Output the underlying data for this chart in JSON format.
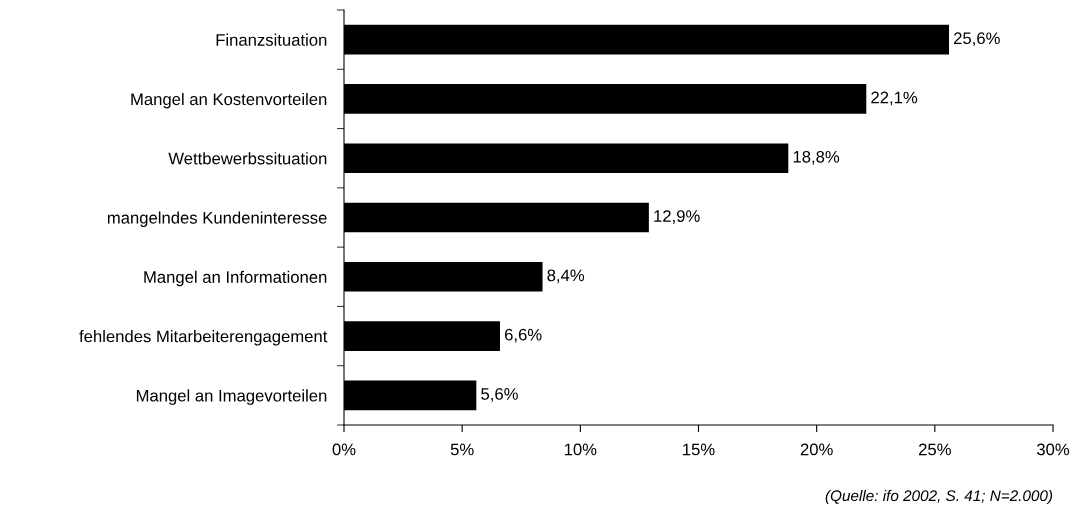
{
  "chart_data": {
    "type": "bar",
    "orientation": "horizontal",
    "categories": [
      "Finanzsituation",
      "Mangel an Kostenvorteilen",
      "Wettbewerbssituation",
      "mangelndes Kundeninteresse",
      "Mangel an Informationen",
      "fehlendes Mitarbeiterengagement",
      "Mangel an Imagevorteilen"
    ],
    "values": [
      25.6,
      22.1,
      18.8,
      12.9,
      8.4,
      6.6,
      5.6
    ],
    "value_labels": [
      "25,6%",
      "22,1%",
      "18,8%",
      "12,9%",
      "8,4%",
      "6,6%",
      "5,6%"
    ],
    "color": "#000000",
    "xlim": [
      0,
      30
    ],
    "xticks": [
      {
        "value": 0,
        "label": "0%"
      },
      {
        "value": 5,
        "label": "5%"
      },
      {
        "value": 10,
        "label": "10%"
      },
      {
        "value": 15,
        "label": "15%"
      },
      {
        "value": 20,
        "label": "20%"
      },
      {
        "value": 25,
        "label": "25%"
      },
      {
        "value": 30,
        "label": "30%"
      }
    ],
    "grid": false,
    "legend": false,
    "annotations": [
      "(Quelle: ifo 2002, S. 41; N=2.000)"
    ]
  }
}
